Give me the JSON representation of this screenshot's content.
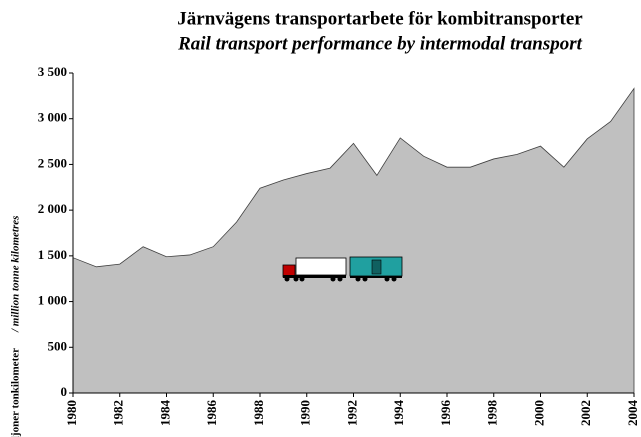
{
  "chart_data": {
    "type": "area",
    "title": "Järnvägens transportarbete för kombitransporter",
    "subtitle": "Rail transport performance by intermodal transport",
    "y_label": "miljoner tonkilometer",
    "y_label_en": "/ million tonne kilometres",
    "x": [
      1980,
      1981,
      1982,
      1983,
      1984,
      1985,
      1986,
      1987,
      1988,
      1989,
      1990,
      1991,
      1992,
      1993,
      1994,
      1995,
      1996,
      1997,
      1998,
      1999,
      2000,
      2001,
      2002,
      2003,
      2004
    ],
    "values": [
      1480,
      1380,
      1410,
      1600,
      1490,
      1510,
      1600,
      1870,
      2240,
      2330,
      2400,
      2460,
      2730,
      2380,
      2790,
      2590,
      2470,
      2470,
      2560,
      2610,
      2700,
      2470,
      2780,
      2970,
      3330
    ],
    "color": "#c0c0c0",
    "xlim": [
      1980,
      2004
    ],
    "xticks": [
      1980,
      1982,
      1984,
      1986,
      1988,
      1990,
      1992,
      1994,
      1996,
      1998,
      2000,
      2002,
      2004
    ],
    "ylim": [
      0,
      3500
    ],
    "yticks": [
      0,
      500,
      {
        "value": 1000,
        "label": "1 000"
      },
      {
        "value": 1500,
        "label": "1 500"
      },
      {
        "value": 2000,
        "label": "2 000"
      },
      {
        "value": 2500,
        "label": "2 500"
      },
      {
        "value": 3000,
        "label": "3 000"
      },
      {
        "value": 3500,
        "label": "3 500"
      }
    ]
  }
}
